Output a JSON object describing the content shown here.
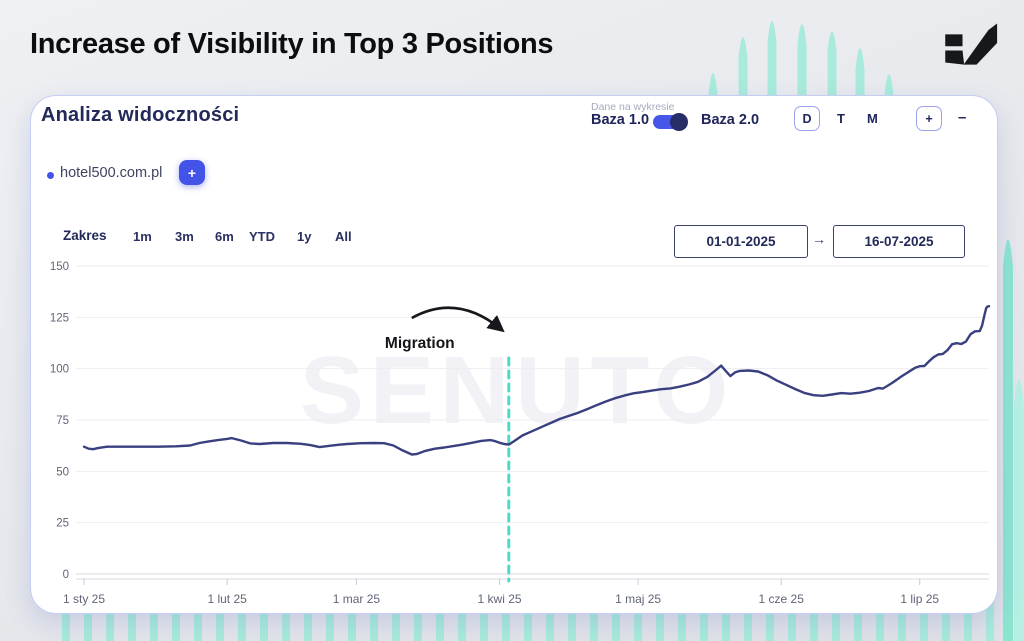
{
  "header": {
    "title": "Increase of Visibility in Top 3 Positions"
  },
  "card": {
    "title": "Analiza widoczności",
    "dataset_label": "Dane na wykresie",
    "toggle": {
      "left": "Baza 1.0",
      "right": "Baza 2.0"
    },
    "granularity": {
      "options": [
        "D",
        "T",
        "M"
      ],
      "active": "D"
    },
    "zoom": {
      "in": "+",
      "out": "–"
    },
    "legend": {
      "domain": "hotel500.com.pl",
      "add": "+"
    },
    "range": {
      "label": "Zakres",
      "options": [
        "1m",
        "3m",
        "6m",
        "YTD",
        "1y",
        "All"
      ]
    },
    "dates": {
      "from": "01-01-2025",
      "arrow": "→",
      "to": "16-07-2025"
    }
  },
  "chart_data": {
    "type": "line",
    "title": "Analiza widoczności",
    "watermark": "SENUTO",
    "x_start_date": "2025-01-01",
    "x_end_date": "2025-07-16",
    "x_unit": "days_since_start",
    "x_end_day": 196,
    "x_ticks": [
      {
        "day": 0,
        "label": "1 sty 25"
      },
      {
        "day": 31,
        "label": "1 lut 25"
      },
      {
        "day": 59,
        "label": "1 mar 25"
      },
      {
        "day": 90,
        "label": "1 kwi 25"
      },
      {
        "day": 120,
        "label": "1 maj 25"
      },
      {
        "day": 151,
        "label": "1 cze 25"
      },
      {
        "day": 181,
        "label": "1 lip 25"
      }
    ],
    "y_ticks": [
      0,
      25,
      50,
      75,
      100,
      125,
      150
    ],
    "ylim": [
      0,
      150
    ],
    "grid": "horizontal",
    "legend_position": "none",
    "annotation": {
      "label": "Migration",
      "day": 92
    },
    "annotation_line_color": "#4fd9c7",
    "series": [
      {
        "name": "hotel500.com.pl",
        "color": "#3a3f80",
        "points": [
          [
            0,
            62
          ],
          [
            1,
            61
          ],
          [
            2,
            60.8
          ],
          [
            3,
            61.3
          ],
          [
            5,
            62
          ],
          [
            8,
            62
          ],
          [
            12,
            62
          ],
          [
            16,
            62
          ],
          [
            20,
            62.2
          ],
          [
            23,
            62.6
          ],
          [
            25,
            63.8
          ],
          [
            27,
            64.6
          ],
          [
            29,
            65.2
          ],
          [
            31,
            65.8
          ],
          [
            32,
            66.2
          ],
          [
            34,
            65
          ],
          [
            36,
            63.6
          ],
          [
            38,
            63.3
          ],
          [
            41,
            63.8
          ],
          [
            44,
            63.8
          ],
          [
            47,
            63.4
          ],
          [
            49,
            62.8
          ],
          [
            51,
            61.8
          ],
          [
            53,
            62.4
          ],
          [
            55,
            62.9
          ],
          [
            57,
            63.3
          ],
          [
            60,
            63.7
          ],
          [
            63,
            63.8
          ],
          [
            65,
            63.7
          ],
          [
            67,
            62.6
          ],
          [
            69,
            60.2
          ],
          [
            71,
            58.2
          ],
          [
            72,
            58.4
          ],
          [
            74,
            60
          ],
          [
            76,
            61
          ],
          [
            78,
            61.6
          ],
          [
            80,
            62.3
          ],
          [
            82,
            63
          ],
          [
            84,
            63.9
          ],
          [
            86,
            64.8
          ],
          [
            88,
            65.2
          ],
          [
            89,
            64.7
          ],
          [
            90,
            63.9
          ],
          [
            91,
            63.3
          ],
          [
            92,
            63
          ],
          [
            93,
            64.5
          ],
          [
            94,
            66
          ],
          [
            95,
            67.5
          ],
          [
            97,
            69.5
          ],
          [
            99,
            71.5
          ],
          [
            101,
            73.5
          ],
          [
            103,
            75.5
          ],
          [
            105,
            77
          ],
          [
            107,
            78.5
          ],
          [
            109,
            80.3
          ],
          [
            111,
            82.2
          ],
          [
            113,
            84
          ],
          [
            115,
            85.6
          ],
          [
            117,
            86.9
          ],
          [
            119,
            88
          ],
          [
            121,
            88.6
          ],
          [
            123,
            89.3
          ],
          [
            125,
            90
          ],
          [
            127,
            90.4
          ],
          [
            129,
            91.2
          ],
          [
            131,
            92.3
          ],
          [
            133,
            93.6
          ],
          [
            134,
            94.8
          ],
          [
            135,
            96
          ],
          [
            136,
            97.8
          ],
          [
            137,
            99.6
          ],
          [
            138,
            101.5
          ],
          [
            139,
            98.8
          ],
          [
            140,
            96.4
          ],
          [
            141,
            98.2
          ],
          [
            142,
            98.9
          ],
          [
            144,
            99.1
          ],
          [
            146,
            98.6
          ],
          [
            148,
            96.8
          ],
          [
            150,
            94.3
          ],
          [
            152,
            92.2
          ],
          [
            154,
            90.1
          ],
          [
            156,
            88.2
          ],
          [
            158,
            87.1
          ],
          [
            160,
            86.8
          ],
          [
            162,
            87.4
          ],
          [
            164,
            88.1
          ],
          [
            166,
            87.8
          ],
          [
            168,
            88.3
          ],
          [
            170,
            89.1
          ],
          [
            172,
            90.6
          ],
          [
            173,
            90.3
          ],
          [
            174,
            91.6
          ],
          [
            175,
            93
          ],
          [
            176,
            94.6
          ],
          [
            177,
            96.2
          ],
          [
            178,
            97.6
          ],
          [
            179,
            99
          ],
          [
            180,
            100.4
          ],
          [
            181,
            101.2
          ],
          [
            182,
            101.3
          ],
          [
            183,
            103.6
          ],
          [
            184,
            105.6
          ],
          [
            185,
            106.9
          ],
          [
            186,
            107.2
          ],
          [
            187,
            109
          ],
          [
            188,
            111.9
          ],
          [
            189,
            112.4
          ],
          [
            190,
            112
          ],
          [
            191,
            113.2
          ],
          [
            192,
            116.8
          ],
          [
            193,
            118.2
          ],
          [
            194,
            118.3
          ],
          [
            194.5,
            121
          ],
          [
            195,
            126
          ],
          [
            195.4,
            129.5
          ],
          [
            195.7,
            130.3
          ],
          [
            196,
            130.4
          ]
        ]
      }
    ]
  }
}
